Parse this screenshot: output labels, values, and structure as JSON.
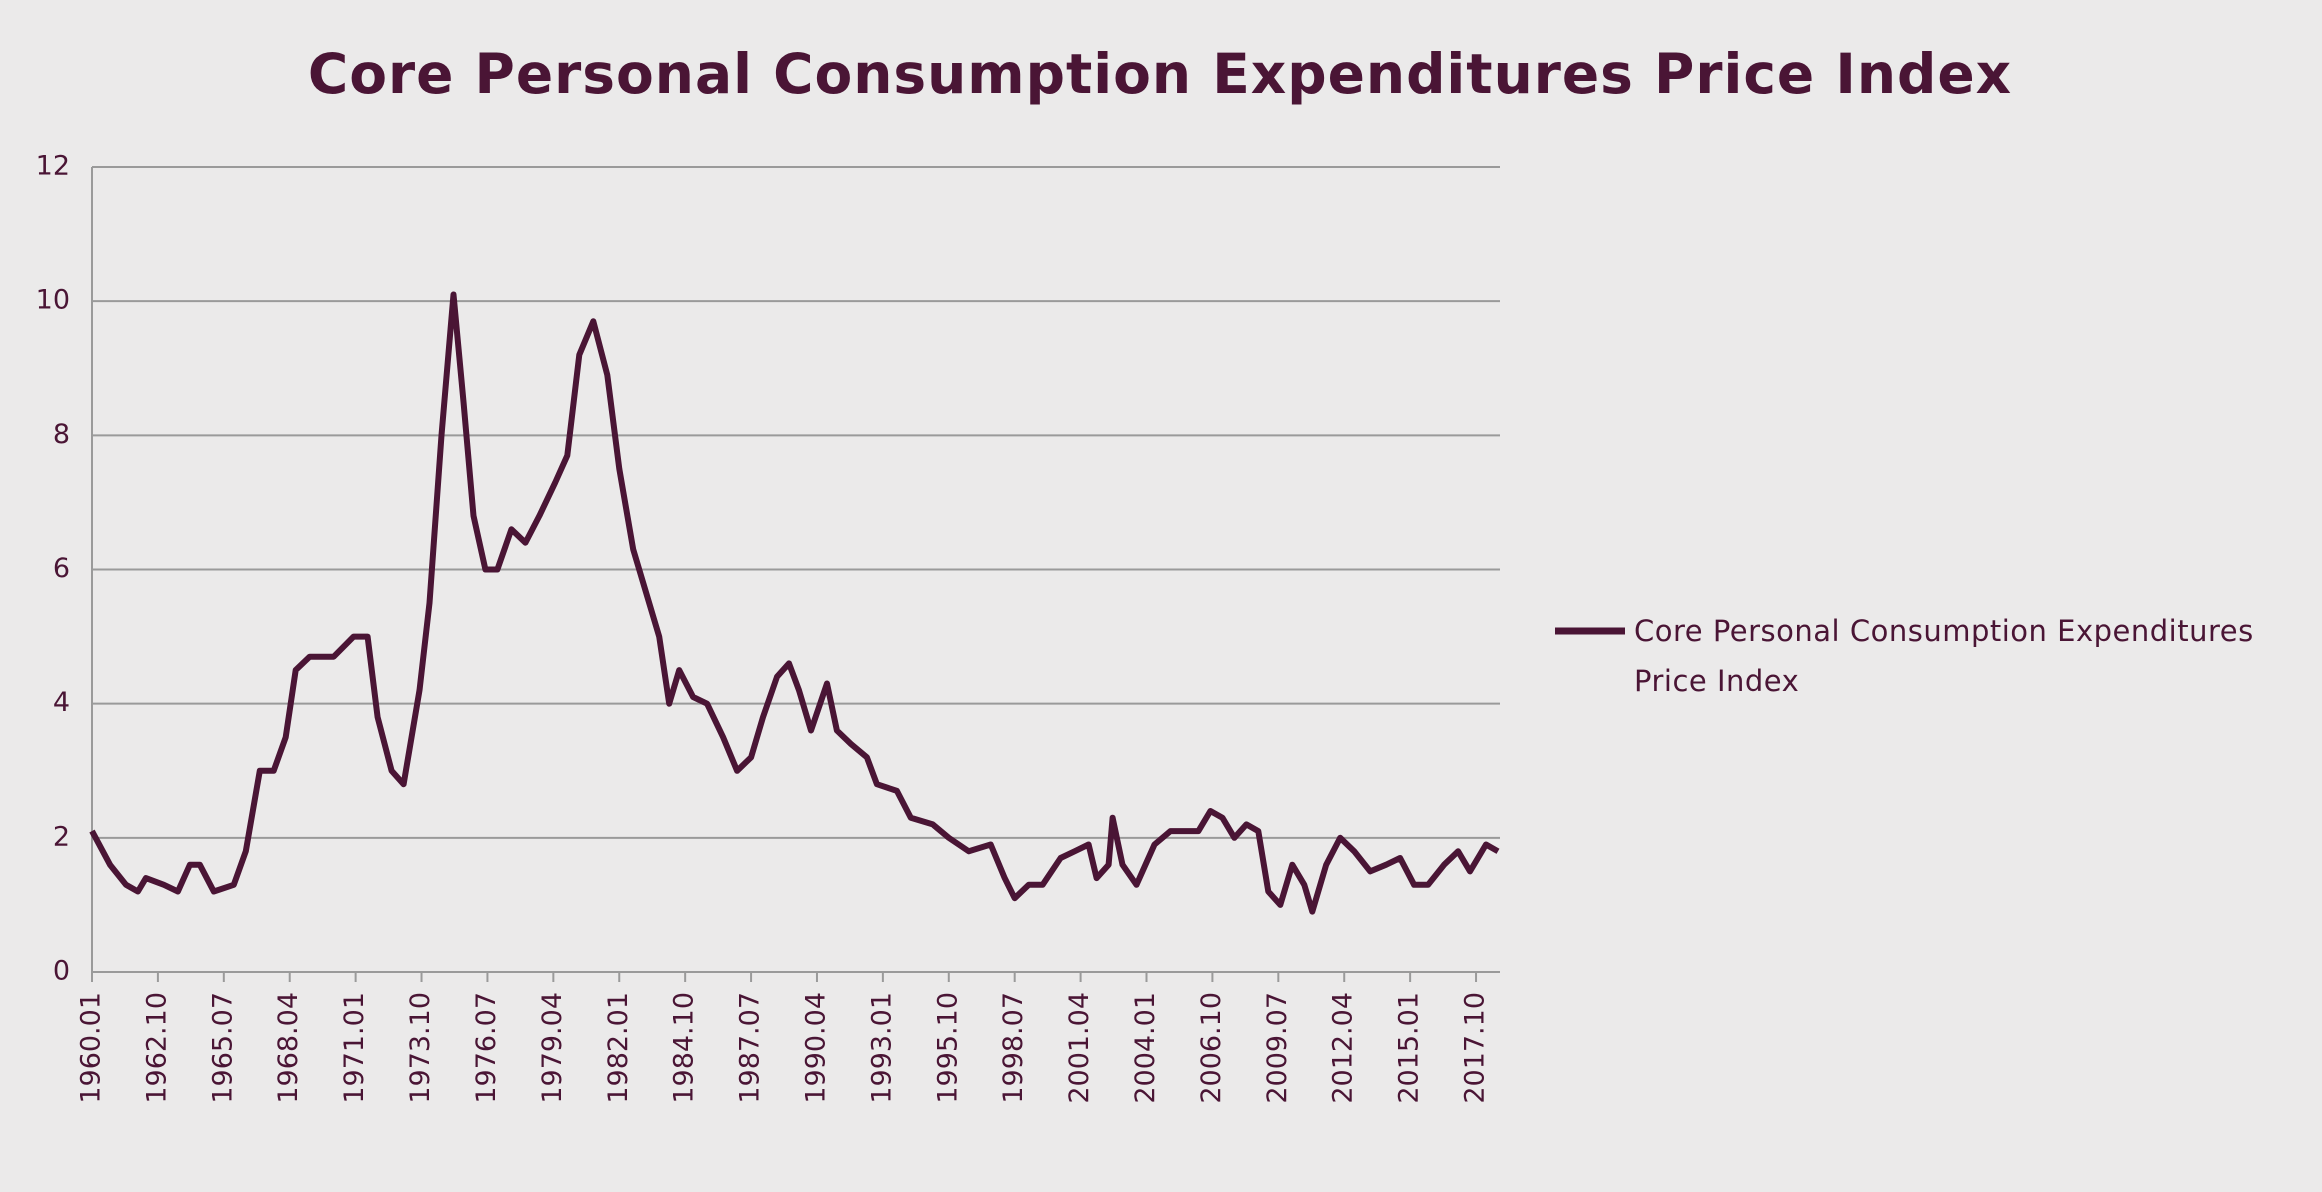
{
  "chart_data": {
    "type": "line",
    "title": "Core Personal Consumption Expenditures Price Index",
    "x": [
      "1960.01",
      "1960.10",
      "1961.06",
      "1961.12",
      "1962.04",
      "1963.01",
      "1963.08",
      "1964.02",
      "1964.07",
      "1965.02",
      "1965.12",
      "1966.06",
      "1967.01",
      "1967.08",
      "1968.02",
      "1968.07",
      "1969.02",
      "1970.02",
      "1970.12",
      "1971.07",
      "1971.12",
      "1972.07",
      "1973.01",
      "1973.09",
      "1974.02",
      "1974.08",
      "1975.02",
      "1975.07",
      "1975.12",
      "1976.06",
      "1976.12",
      "1977.07",
      "1978.02",
      "1978.09",
      "1979.05",
      "1979.11",
      "1980.05",
      "1980.12",
      "1981.07",
      "1982.01",
      "1982.08",
      "1983.02",
      "1983.09",
      "1984.02",
      "1984.07",
      "1985.02",
      "1985.09",
      "1986.05",
      "1986.12",
      "1987.07",
      "1988.01",
      "1988.08",
      "1989.02",
      "1989.07",
      "1990.01",
      "1990.09",
      "1991.02",
      "1991.09",
      "1992.05",
      "1992.10",
      "1993.08",
      "1994.03",
      "1995.02",
      "1995.10",
      "1996.08",
      "1997.07",
      "1998.02",
      "1998.07",
      "1999.02",
      "1999.09",
      "2000.06",
      "2001.01",
      "2001.08",
      "2001.12",
      "2002.06",
      "2002.08",
      "2003.01",
      "2003.08",
      "2004.05",
      "2005.01",
      "2005.08",
      "2006.03",
      "2006.09",
      "2007.03",
      "2007.09",
      "2008.03",
      "2008.09",
      "2009.02",
      "2009.08",
      "2010.02",
      "2010.08",
      "2010.12",
      "2011.07",
      "2012.02",
      "2012.09",
      "2013.05",
      "2014.01",
      "2014.08",
      "2015.03",
      "2015.10",
      "2016.06",
      "2017.01",
      "2017.07",
      "2018.03",
      "2018.09"
    ],
    "series": [
      {
        "name": "Core Personal Consumption Expenditures Price Index",
        "color": "#4a1535",
        "values": [
          2.1,
          1.6,
          1.3,
          1.2,
          1.4,
          1.3,
          1.2,
          1.6,
          1.6,
          1.2,
          1.3,
          1.8,
          3.0,
          3.0,
          3.5,
          4.5,
          4.7,
          4.7,
          5.0,
          5.0,
          3.8,
          3.0,
          2.8,
          4.2,
          5.5,
          8.0,
          10.1,
          8.5,
          6.8,
          6.0,
          6.0,
          6.6,
          6.4,
          6.8,
          7.3,
          7.7,
          9.2,
          9.7,
          8.9,
          7.5,
          6.3,
          5.7,
          5.0,
          4.0,
          4.5,
          4.1,
          4.0,
          3.5,
          3.0,
          3.2,
          3.8,
          4.4,
          4.6,
          4.2,
          3.6,
          4.3,
          3.6,
          3.4,
          3.2,
          2.8,
          2.7,
          2.3,
          2.2,
          2.0,
          1.8,
          1.9,
          1.4,
          1.1,
          1.3,
          1.3,
          1.7,
          1.8,
          1.9,
          1.4,
          1.6,
          2.3,
          1.6,
          1.3,
          1.9,
          2.1,
          2.1,
          2.1,
          2.4,
          2.3,
          2.0,
          2.2,
          2.1,
          1.2,
          1.0,
          1.6,
          1.3,
          0.9,
          1.6,
          2.0,
          1.8,
          1.5,
          1.6,
          1.7,
          1.3,
          1.3,
          1.6,
          1.8,
          1.5,
          1.9,
          1.8
        ]
      }
    ],
    "xlim": [
      "1960.01",
      "2018.10"
    ],
    "xticks": [
      "1960.01",
      "1962.10",
      "1965.07",
      "1968.04",
      "1971.01",
      "1973.10",
      "1976.07",
      "1979.04",
      "1982.01",
      "1984.10",
      "1987.07",
      "1990.04",
      "1993.01",
      "1995.10",
      "1998.07",
      "2001.04",
      "2004.01",
      "2006.10",
      "2009.07",
      "2012.04",
      "2015.01",
      "2017.10"
    ],
    "ylim": [
      0,
      12
    ],
    "yticks": [
      0,
      2,
      4,
      6,
      8,
      10,
      12
    ],
    "grid": true,
    "legend": "right"
  }
}
